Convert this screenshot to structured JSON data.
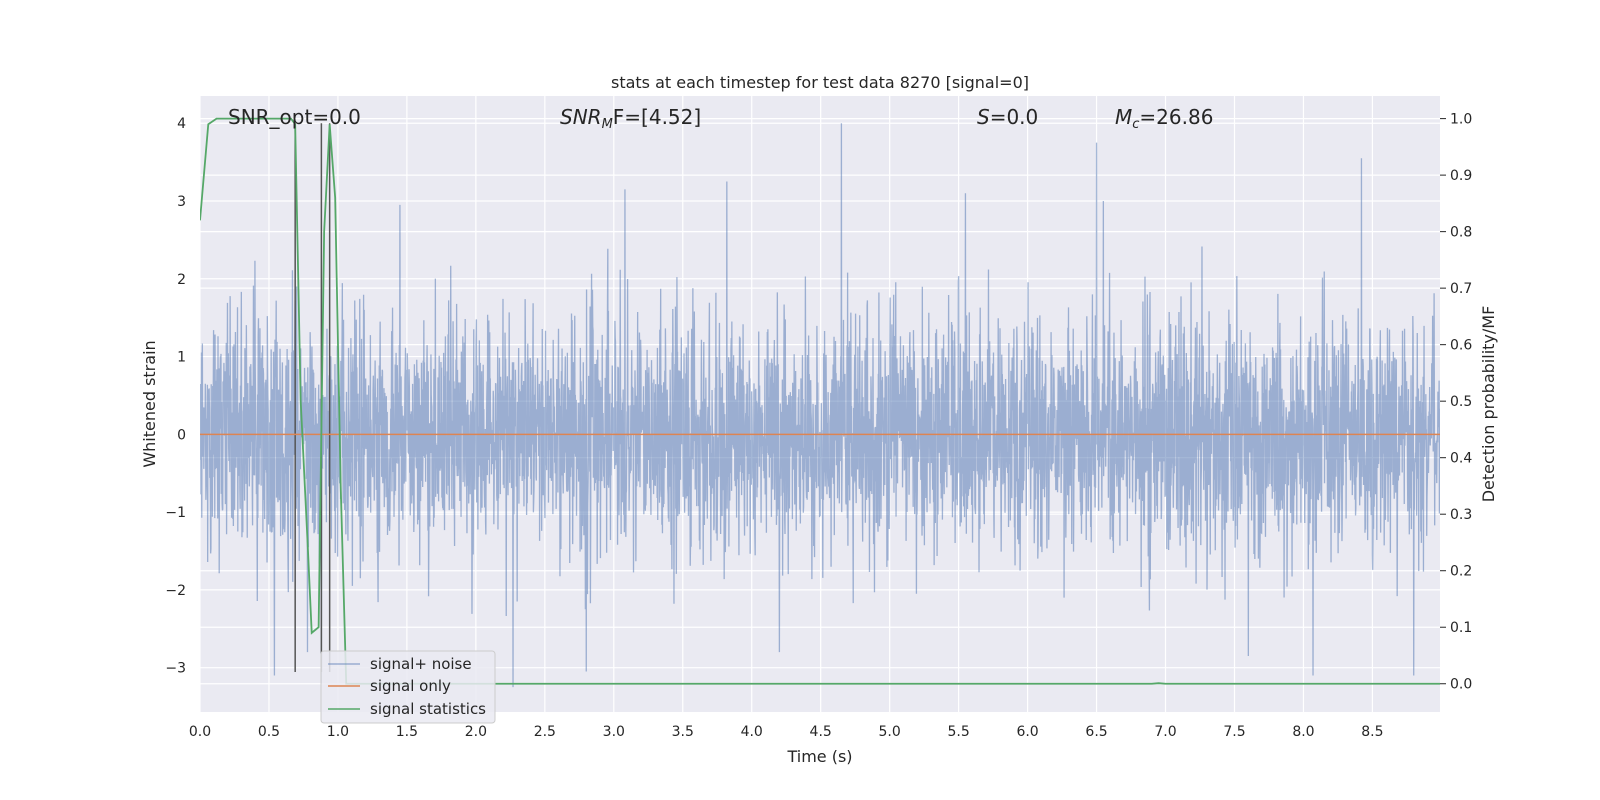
{
  "chart_data": {
    "type": "line",
    "title": "stats at each timestep for test data 8270 [signal=0]",
    "xlabel": "Time (s)",
    "ylabel_left": "Whitened strain",
    "ylabel_right": "Detection probability/MF",
    "xlim": [
      0.0,
      8.99
    ],
    "ylim_left": [
      -3.57,
      4.35
    ],
    "ylim_right": [
      -0.05,
      1.04
    ],
    "xticks": [
      0.0,
      0.5,
      1.0,
      1.5,
      2.0,
      2.5,
      3.0,
      3.5,
      4.0,
      4.5,
      5.0,
      5.5,
      6.0,
      6.5,
      7.0,
      7.5,
      8.0,
      8.5
    ],
    "xtick_labels": [
      "0.0",
      "0.5",
      "1.0",
      "1.5",
      "2.0",
      "2.5",
      "3.0",
      "3.5",
      "4.0",
      "4.5",
      "5.0",
      "5.5",
      "6.0",
      "6.5",
      "7.0",
      "7.5",
      "8.0",
      "8.5"
    ],
    "yticks_left": [
      -3,
      -2,
      -1,
      0,
      1,
      2,
      3,
      4
    ],
    "ytick_labels_left": [
      "−3",
      "−2",
      "−1",
      "0",
      "1",
      "2",
      "3",
      "4"
    ],
    "yticks_right": [
      0.0,
      0.1,
      0.2,
      0.3,
      0.4,
      0.5,
      0.6,
      0.7,
      0.8,
      0.9,
      1.0
    ],
    "ytick_labels_right": [
      "0.0",
      "0.1",
      "0.2",
      "0.3",
      "0.4",
      "0.5",
      "0.6",
      "0.7",
      "0.8",
      "0.9",
      "1.0"
    ],
    "grid": true,
    "background": "#eaeaf2",
    "annotations": {
      "snr_opt": "SNR_opt=0.0",
      "snr_mf_main": "SNR",
      "snr_mf_sub": "M",
      "snr_mf_rest": "F=[4.52]",
      "s_var": "S",
      "s_rest": "=0.0",
      "mc_var": "M",
      "mc_sub": "c",
      "mc_rest": "=26.86"
    },
    "vertical_lines_x": [
      0.69,
      0.88,
      0.94
    ],
    "series": [
      {
        "name": "signal+ noise",
        "color": "#4c72b0",
        "alpha": 0.5,
        "noise_std": 0.75,
        "peaks": [
          {
            "x": 0.7,
            "y": 1.9
          },
          {
            "x": 1.45,
            "y": 2.95
          },
          {
            "x": 3.08,
            "y": 3.15
          },
          {
            "x": 3.82,
            "y": 3.25
          },
          {
            "x": 4.65,
            "y": 4.0
          },
          {
            "x": 5.55,
            "y": 3.1
          },
          {
            "x": 6.5,
            "y": 3.75
          },
          {
            "x": 6.55,
            "y": 3.0
          },
          {
            "x": 8.42,
            "y": 3.55
          },
          {
            "x": 2.27,
            "y": -3.25
          },
          {
            "x": 0.54,
            "y": -3.1
          },
          {
            "x": 0.78,
            "y": -2.8
          },
          {
            "x": 0.88,
            "y": -3.2
          },
          {
            "x": 2.8,
            "y": -3.05
          },
          {
            "x": 8.8,
            "y": -3.1
          },
          {
            "x": 8.07,
            "y": -3.1
          },
          {
            "x": 7.6,
            "y": -2.85
          },
          {
            "x": 4.2,
            "y": -2.8
          }
        ]
      },
      {
        "name": "signal only",
        "color": "#dd8452",
        "x": [
          0.0,
          8.99
        ],
        "y": [
          0.0,
          0.0
        ]
      },
      {
        "name": "signal statistics",
        "color": "#55a868",
        "axis": "right",
        "x": [
          0.0,
          0.06,
          0.12,
          0.25,
          0.4,
          0.55,
          0.66,
          0.69,
          0.73,
          0.78,
          0.81,
          0.86,
          0.9,
          0.94,
          0.98,
          1.02,
          1.06,
          1.1,
          2.0,
          3.0,
          4.0,
          5.0,
          6.0,
          6.9,
          6.95,
          7.0,
          8.0,
          8.99
        ],
        "y": [
          0.82,
          0.99,
          1.0,
          1.0,
          1.0,
          1.0,
          1.0,
          0.99,
          0.5,
          0.25,
          0.09,
          0.1,
          0.8,
          0.99,
          0.86,
          0.35,
          0.0,
          0.0,
          0.0,
          0.0,
          0.0,
          0.0,
          0.0,
          0.0,
          0.001,
          0.0,
          0.0,
          0.0
        ]
      }
    ],
    "legend": {
      "location": "lower-left",
      "entries": [
        "signal+ noise",
        "signal only",
        "signal statistics"
      ]
    }
  }
}
